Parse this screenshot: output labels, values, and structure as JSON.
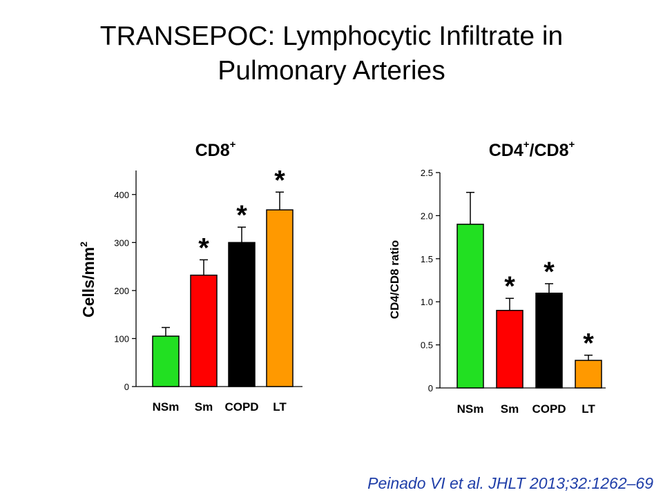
{
  "slide": {
    "title_line1": "TRANSEPOC: Lymphocytic Infiltrate in",
    "title_line2": "Pulmonary Arteries",
    "citation": "Peinado VI et al. JHLT 2013;32:1262–69"
  },
  "colors": {
    "NSm": "#22e022",
    "Sm": "#ff0000",
    "COPD": "#000000",
    "LT": "#ff9900"
  },
  "chart_data": [
    {
      "type": "bar",
      "title": "CD8",
      "title_sup": "+",
      "ylabel": "Cells/mm",
      "ylabel_sup": "2",
      "categories": [
        "NSm",
        "Sm",
        "COPD",
        "LT"
      ],
      "values": [
        105,
        232,
        300,
        368
      ],
      "errors": [
        18,
        32,
        32,
        37
      ],
      "significant": [
        false,
        true,
        true,
        true
      ],
      "significance_marker": "*",
      "ylim": [
        0,
        450
      ],
      "yticks": [
        0,
        100,
        200,
        300,
        400
      ],
      "ytick_labels": [
        "0",
        "100",
        "200",
        "300",
        "400"
      ]
    },
    {
      "type": "bar",
      "title": "CD4",
      "title_sup": "+",
      "title_mid": "/CD8",
      "title_sup2": "+",
      "ylabel": "CD4/CD8 ratio",
      "categories": [
        "NSm",
        "Sm",
        "COPD",
        "LT"
      ],
      "values": [
        1.9,
        0.9,
        1.1,
        0.32
      ],
      "errors": [
        0.37,
        0.14,
        0.11,
        0.06
      ],
      "significant": [
        false,
        true,
        true,
        true
      ],
      "significance_marker": "*",
      "ylim": [
        0,
        2.5
      ],
      "yticks": [
        0,
        0.5,
        1.0,
        1.5,
        2.0,
        2.5
      ],
      "ytick_labels": [
        "0",
        "0.5",
        "1.0",
        "1.5",
        "2.0",
        "2.5"
      ]
    }
  ]
}
